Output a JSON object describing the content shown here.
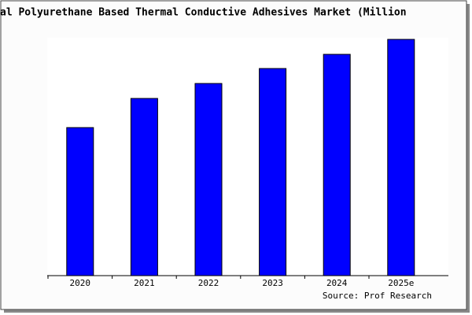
{
  "chart_data": {
    "type": "bar",
    "title": "al Polyurethane Based Thermal Conductive Adhesives Market (Million",
    "categories": [
      "2020",
      "2021",
      "2022",
      "2023",
      "2024",
      "2025e"
    ],
    "values": [
      188,
      225,
      244,
      263,
      281,
      300
    ],
    "color": "#0000ff",
    "ylim": [
      0,
      302
    ],
    "source": "Source: Prof Research"
  }
}
